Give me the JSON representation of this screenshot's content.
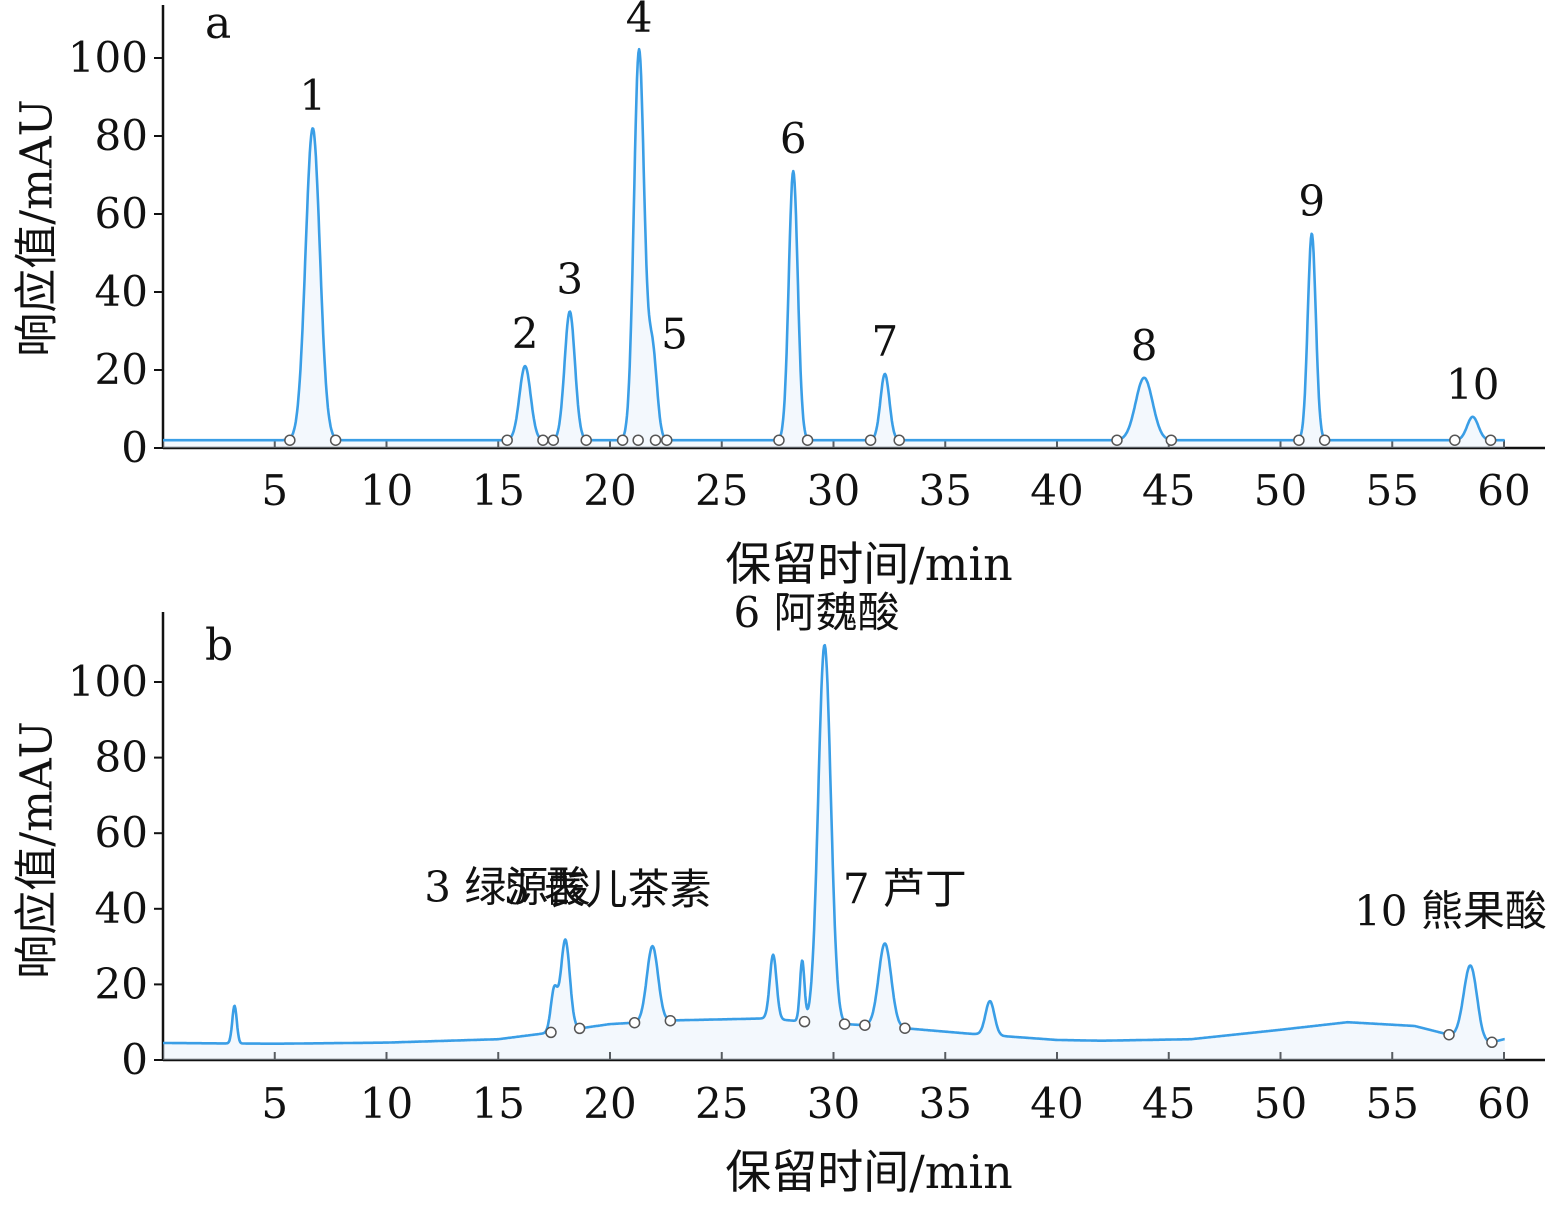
{
  "chart_data": [
    {
      "type": "line",
      "panel_label": "a",
      "xlabel": "保留时间/min",
      "ylabel": "响应值/mAU",
      "xlim": [
        0,
        63
      ],
      "ylim": [
        0,
        118
      ],
      "xticks": [
        5,
        10,
        15,
        20,
        25,
        30,
        35,
        40,
        45,
        50,
        55,
        60
      ],
      "yticks": [
        0,
        20,
        40,
        60,
        80,
        100
      ],
      "baseline": 2,
      "color": "#3a9ee6",
      "peaks": [
        {
          "label": "1",
          "x": 6.7,
          "y": 80,
          "width": 0.32
        },
        {
          "label": "2",
          "x": 16.2,
          "y": 19,
          "width": 0.25
        },
        {
          "label": "3",
          "x": 18.2,
          "y": 33,
          "width": 0.23
        },
        {
          "label": "4",
          "x": 21.3,
          "y": 100,
          "width": 0.23
        },
        {
          "label": "5",
          "x": 21.9,
          "y": 23,
          "width": 0.2
        },
        {
          "label": "6",
          "x": 28.2,
          "y": 69,
          "width": 0.2
        },
        {
          "label": "7",
          "x": 32.3,
          "y": 17,
          "width": 0.2
        },
        {
          "label": "8",
          "x": 43.9,
          "y": 16,
          "width": 0.38
        },
        {
          "label": "9",
          "x": 51.4,
          "y": 53,
          "width": 0.18
        },
        {
          "label": "10",
          "x": 58.6,
          "y": 6,
          "width": 0.25
        }
      ]
    },
    {
      "type": "line",
      "panel_label": "b",
      "xlabel": "保留时间/min",
      "ylabel": "响应值/mAU",
      "xlim": [
        0,
        63
      ],
      "ylim": [
        0,
        118
      ],
      "xticks": [
        5,
        10,
        15,
        20,
        25,
        30,
        35,
        40,
        45,
        50,
        55,
        60
      ],
      "yticks": [
        0,
        20,
        40,
        60,
        80,
        100
      ],
      "color": "#3a9ee6",
      "baseline_points": [
        [
          0,
          4.5
        ],
        [
          5,
          4.3
        ],
        [
          10,
          4.6
        ],
        [
          15,
          5.5
        ],
        [
          17,
          7
        ],
        [
          20,
          9.5
        ],
        [
          23,
          10.5
        ],
        [
          27,
          11
        ],
        [
          29,
          10
        ],
        [
          32,
          9
        ],
        [
          36,
          7
        ],
        [
          40,
          5.3
        ],
        [
          42,
          5.1
        ],
        [
          46,
          5.5
        ],
        [
          50,
          8
        ],
        [
          53,
          10
        ],
        [
          56,
          9
        ],
        [
          58,
          6
        ],
        [
          59,
          4
        ],
        [
          60,
          5.5
        ]
      ],
      "peaks": [
        {
          "label": "3 绿源酸",
          "x": 18.0,
          "y": 24,
          "width": 0.2
        },
        {
          "label": "5 表儿茶素",
          "x": 21.9,
          "y": 20,
          "width": 0.25
        },
        {
          "label": "6 阿魏酸",
          "x": 29.6,
          "y": 100,
          "width": 0.28
        },
        {
          "label": "7 芦丁",
          "x": 32.3,
          "y": 22,
          "width": 0.28
        },
        {
          "label": "10 熊果酸",
          "x": 58.5,
          "y": 20,
          "width": 0.3
        }
      ],
      "minor_peaks": [
        {
          "x": 3.2,
          "y": 10,
          "width": 0.1
        },
        {
          "x": 17.5,
          "y": 11,
          "width": 0.15
        },
        {
          "x": 27.3,
          "y": 17,
          "width": 0.15
        },
        {
          "x": 28.6,
          "y": 16,
          "width": 0.1
        },
        {
          "x": 37.0,
          "y": 9,
          "width": 0.2
        }
      ]
    }
  ]
}
